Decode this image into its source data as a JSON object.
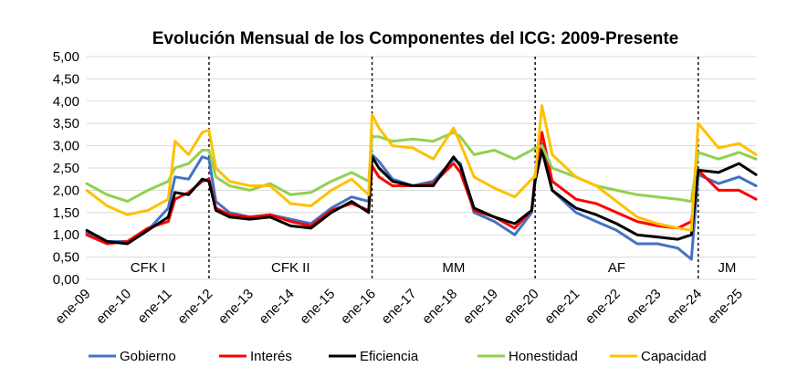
{
  "chart_data": {
    "type": "line",
    "title": "Evolución Mensual de los Componentes del ICG: 2009-Presente",
    "xlabel": "",
    "ylabel": "",
    "ylim": [
      0,
      5
    ],
    "yticks": [
      "0,00",
      "0,50",
      "1,00",
      "1,50",
      "2,00",
      "2,50",
      "3,00",
      "3,50",
      "4,00",
      "4,50",
      "5,00"
    ],
    "xticks": [
      "ene-09",
      "ene-10",
      "ene-11",
      "ene-12",
      "ene-13",
      "ene-14",
      "ene-15",
      "ene-16",
      "ene-17",
      "ene-18",
      "ene-19",
      "ene-20",
      "ene-21",
      "ene-22",
      "ene-23",
      "ene-24",
      "ene-25"
    ],
    "x_range": [
      "2009-01",
      "2025-06"
    ],
    "grid": true,
    "legend_position": "bottom",
    "periods": [
      {
        "label": "CFK I",
        "start": "2009-01",
        "end": "2012-01"
      },
      {
        "label": "CFK II",
        "start": "2012-01",
        "end": "2016-01"
      },
      {
        "label": "MM",
        "start": "2016-01",
        "end": "2020-01"
      },
      {
        "label": "AF",
        "start": "2020-01",
        "end": "2024-01"
      },
      {
        "label": "JM",
        "start": "2024-01",
        "end": "2025-06"
      }
    ],
    "dividers": [
      "2012-01",
      "2016-01",
      "2020-01",
      "2024-01"
    ],
    "series": [
      {
        "name": "Gobierno",
        "color": "#4472c4",
        "points": [
          [
            "2009-01",
            1.05
          ],
          [
            "2009-07",
            0.85
          ],
          [
            "2010-01",
            0.85
          ],
          [
            "2010-07",
            1.1
          ],
          [
            "2011-01",
            1.6
          ],
          [
            "2011-03",
            2.3
          ],
          [
            "2011-07",
            2.25
          ],
          [
            "2011-11",
            2.75
          ],
          [
            "2012-01",
            2.7
          ],
          [
            "2012-03",
            1.75
          ],
          [
            "2012-07",
            1.5
          ],
          [
            "2013-01",
            1.4
          ],
          [
            "2013-07",
            1.45
          ],
          [
            "2014-01",
            1.35
          ],
          [
            "2014-07",
            1.25
          ],
          [
            "2015-01",
            1.6
          ],
          [
            "2015-07",
            1.85
          ],
          [
            "2015-12",
            1.75
          ],
          [
            "2016-01",
            2.8
          ],
          [
            "2016-03",
            2.65
          ],
          [
            "2016-07",
            2.25
          ],
          [
            "2017-01",
            2.1
          ],
          [
            "2017-07",
            2.2
          ],
          [
            "2018-01",
            2.7
          ],
          [
            "2018-03",
            2.6
          ],
          [
            "2018-07",
            1.5
          ],
          [
            "2019-01",
            1.3
          ],
          [
            "2019-07",
            1.0
          ],
          [
            "2019-12",
            1.5
          ],
          [
            "2020-01",
            2.35
          ],
          [
            "2020-03",
            3.05
          ],
          [
            "2020-06",
            2.0
          ],
          [
            "2021-01",
            1.5
          ],
          [
            "2021-07",
            1.3
          ],
          [
            "2022-01",
            1.1
          ],
          [
            "2022-07",
            0.8
          ],
          [
            "2023-01",
            0.8
          ],
          [
            "2023-07",
            0.7
          ],
          [
            "2023-11",
            0.45
          ],
          [
            "2024-01",
            2.35
          ],
          [
            "2024-07",
            2.15
          ],
          [
            "2025-01",
            2.3
          ],
          [
            "2025-06",
            2.1
          ]
        ]
      },
      {
        "name": "Interés",
        "color": "#ff0000",
        "points": [
          [
            "2009-01",
            1.0
          ],
          [
            "2009-07",
            0.8
          ],
          [
            "2010-01",
            0.85
          ],
          [
            "2010-07",
            1.15
          ],
          [
            "2011-01",
            1.3
          ],
          [
            "2011-03",
            1.8
          ],
          [
            "2011-07",
            1.95
          ],
          [
            "2011-11",
            2.2
          ],
          [
            "2012-01",
            2.25
          ],
          [
            "2012-03",
            1.6
          ],
          [
            "2012-07",
            1.45
          ],
          [
            "2013-01",
            1.4
          ],
          [
            "2013-07",
            1.45
          ],
          [
            "2014-01",
            1.3
          ],
          [
            "2014-07",
            1.2
          ],
          [
            "2015-01",
            1.55
          ],
          [
            "2015-07",
            1.7
          ],
          [
            "2015-12",
            1.55
          ],
          [
            "2016-01",
            2.55
          ],
          [
            "2016-03",
            2.3
          ],
          [
            "2016-07",
            2.1
          ],
          [
            "2017-01",
            2.1
          ],
          [
            "2017-07",
            2.15
          ],
          [
            "2018-01",
            2.6
          ],
          [
            "2018-03",
            2.4
          ],
          [
            "2018-07",
            1.55
          ],
          [
            "2019-01",
            1.4
          ],
          [
            "2019-07",
            1.15
          ],
          [
            "2019-12",
            1.55
          ],
          [
            "2020-01",
            2.3
          ],
          [
            "2020-03",
            3.3
          ],
          [
            "2020-06",
            2.2
          ],
          [
            "2021-01",
            1.8
          ],
          [
            "2021-07",
            1.7
          ],
          [
            "2022-01",
            1.5
          ],
          [
            "2022-07",
            1.3
          ],
          [
            "2023-01",
            1.2
          ],
          [
            "2023-07",
            1.15
          ],
          [
            "2023-11",
            1.3
          ],
          [
            "2024-01",
            2.45
          ],
          [
            "2024-07",
            2.0
          ],
          [
            "2025-01",
            2.0
          ],
          [
            "2025-06",
            1.8
          ]
        ]
      },
      {
        "name": "Eficiencia",
        "color": "#000000",
        "points": [
          [
            "2009-01",
            1.1
          ],
          [
            "2009-07",
            0.85
          ],
          [
            "2010-01",
            0.8
          ],
          [
            "2010-07",
            1.1
          ],
          [
            "2011-01",
            1.4
          ],
          [
            "2011-03",
            1.95
          ],
          [
            "2011-07",
            1.9
          ],
          [
            "2011-11",
            2.25
          ],
          [
            "2012-01",
            2.2
          ],
          [
            "2012-03",
            1.55
          ],
          [
            "2012-07",
            1.4
          ],
          [
            "2013-01",
            1.35
          ],
          [
            "2013-07",
            1.4
          ],
          [
            "2014-01",
            1.2
          ],
          [
            "2014-07",
            1.15
          ],
          [
            "2015-01",
            1.5
          ],
          [
            "2015-07",
            1.75
          ],
          [
            "2015-12",
            1.5
          ],
          [
            "2016-01",
            2.75
          ],
          [
            "2016-03",
            2.5
          ],
          [
            "2016-07",
            2.2
          ],
          [
            "2017-01",
            2.1
          ],
          [
            "2017-07",
            2.1
          ],
          [
            "2018-01",
            2.75
          ],
          [
            "2018-03",
            2.55
          ],
          [
            "2018-07",
            1.6
          ],
          [
            "2019-01",
            1.4
          ],
          [
            "2019-07",
            1.25
          ],
          [
            "2019-12",
            1.55
          ],
          [
            "2020-01",
            2.2
          ],
          [
            "2020-03",
            2.9
          ],
          [
            "2020-06",
            2.0
          ],
          [
            "2021-01",
            1.6
          ],
          [
            "2021-07",
            1.45
          ],
          [
            "2022-01",
            1.25
          ],
          [
            "2022-07",
            1.0
          ],
          [
            "2023-01",
            0.95
          ],
          [
            "2023-07",
            0.9
          ],
          [
            "2023-11",
            1.0
          ],
          [
            "2024-01",
            2.45
          ],
          [
            "2024-07",
            2.4
          ],
          [
            "2025-01",
            2.6
          ],
          [
            "2025-06",
            2.35
          ]
        ]
      },
      {
        "name": "Honestidad",
        "color": "#92d050",
        "points": [
          [
            "2009-01",
            2.15
          ],
          [
            "2009-07",
            1.9
          ],
          [
            "2010-01",
            1.75
          ],
          [
            "2010-07",
            2.0
          ],
          [
            "2011-01",
            2.2
          ],
          [
            "2011-03",
            2.5
          ],
          [
            "2011-07",
            2.6
          ],
          [
            "2011-11",
            2.9
          ],
          [
            "2012-01",
            2.9
          ],
          [
            "2012-03",
            2.3
          ],
          [
            "2012-07",
            2.1
          ],
          [
            "2013-01",
            2.0
          ],
          [
            "2013-07",
            2.15
          ],
          [
            "2014-01",
            1.9
          ],
          [
            "2014-07",
            1.95
          ],
          [
            "2015-01",
            2.2
          ],
          [
            "2015-07",
            2.4
          ],
          [
            "2015-12",
            2.2
          ],
          [
            "2016-01",
            3.2
          ],
          [
            "2016-03",
            3.2
          ],
          [
            "2016-07",
            3.1
          ],
          [
            "2017-01",
            3.15
          ],
          [
            "2017-07",
            3.1
          ],
          [
            "2018-01",
            3.3
          ],
          [
            "2018-03",
            3.2
          ],
          [
            "2018-07",
            2.8
          ],
          [
            "2019-01",
            2.9
          ],
          [
            "2019-07",
            2.7
          ],
          [
            "2019-12",
            2.9
          ],
          [
            "2020-01",
            2.95
          ],
          [
            "2020-03",
            3.0
          ],
          [
            "2020-06",
            2.5
          ],
          [
            "2021-01",
            2.3
          ],
          [
            "2021-07",
            2.1
          ],
          [
            "2022-01",
            2.0
          ],
          [
            "2022-07",
            1.9
          ],
          [
            "2023-01",
            1.85
          ],
          [
            "2023-07",
            1.8
          ],
          [
            "2023-11",
            1.75
          ],
          [
            "2024-01",
            2.85
          ],
          [
            "2024-07",
            2.7
          ],
          [
            "2025-01",
            2.85
          ],
          [
            "2025-06",
            2.7
          ]
        ]
      },
      {
        "name": "Capacidad",
        "color": "#ffc000",
        "points": [
          [
            "2009-01",
            2.0
          ],
          [
            "2009-07",
            1.65
          ],
          [
            "2010-01",
            1.45
          ],
          [
            "2010-07",
            1.55
          ],
          [
            "2011-01",
            1.8
          ],
          [
            "2011-03",
            3.1
          ],
          [
            "2011-07",
            2.8
          ],
          [
            "2011-11",
            3.3
          ],
          [
            "2012-01",
            3.35
          ],
          [
            "2012-03",
            2.5
          ],
          [
            "2012-07",
            2.2
          ],
          [
            "2013-01",
            2.1
          ],
          [
            "2013-07",
            2.1
          ],
          [
            "2014-01",
            1.7
          ],
          [
            "2014-07",
            1.65
          ],
          [
            "2015-01",
            2.0
          ],
          [
            "2015-07",
            2.25
          ],
          [
            "2015-12",
            1.9
          ],
          [
            "2016-01",
            3.7
          ],
          [
            "2016-03",
            3.4
          ],
          [
            "2016-07",
            3.0
          ],
          [
            "2017-01",
            2.95
          ],
          [
            "2017-07",
            2.7
          ],
          [
            "2018-01",
            3.4
          ],
          [
            "2018-03",
            3.05
          ],
          [
            "2018-07",
            2.3
          ],
          [
            "2019-01",
            2.05
          ],
          [
            "2019-07",
            1.85
          ],
          [
            "2019-12",
            2.25
          ],
          [
            "2020-01",
            2.3
          ],
          [
            "2020-03",
            3.9
          ],
          [
            "2020-06",
            2.8
          ],
          [
            "2021-01",
            2.3
          ],
          [
            "2021-07",
            2.1
          ],
          [
            "2022-01",
            1.75
          ],
          [
            "2022-07",
            1.4
          ],
          [
            "2023-01",
            1.25
          ],
          [
            "2023-07",
            1.15
          ],
          [
            "2023-11",
            1.1
          ],
          [
            "2024-01",
            3.5
          ],
          [
            "2024-07",
            2.95
          ],
          [
            "2025-01",
            3.05
          ],
          [
            "2025-06",
            2.8
          ]
        ]
      }
    ]
  }
}
